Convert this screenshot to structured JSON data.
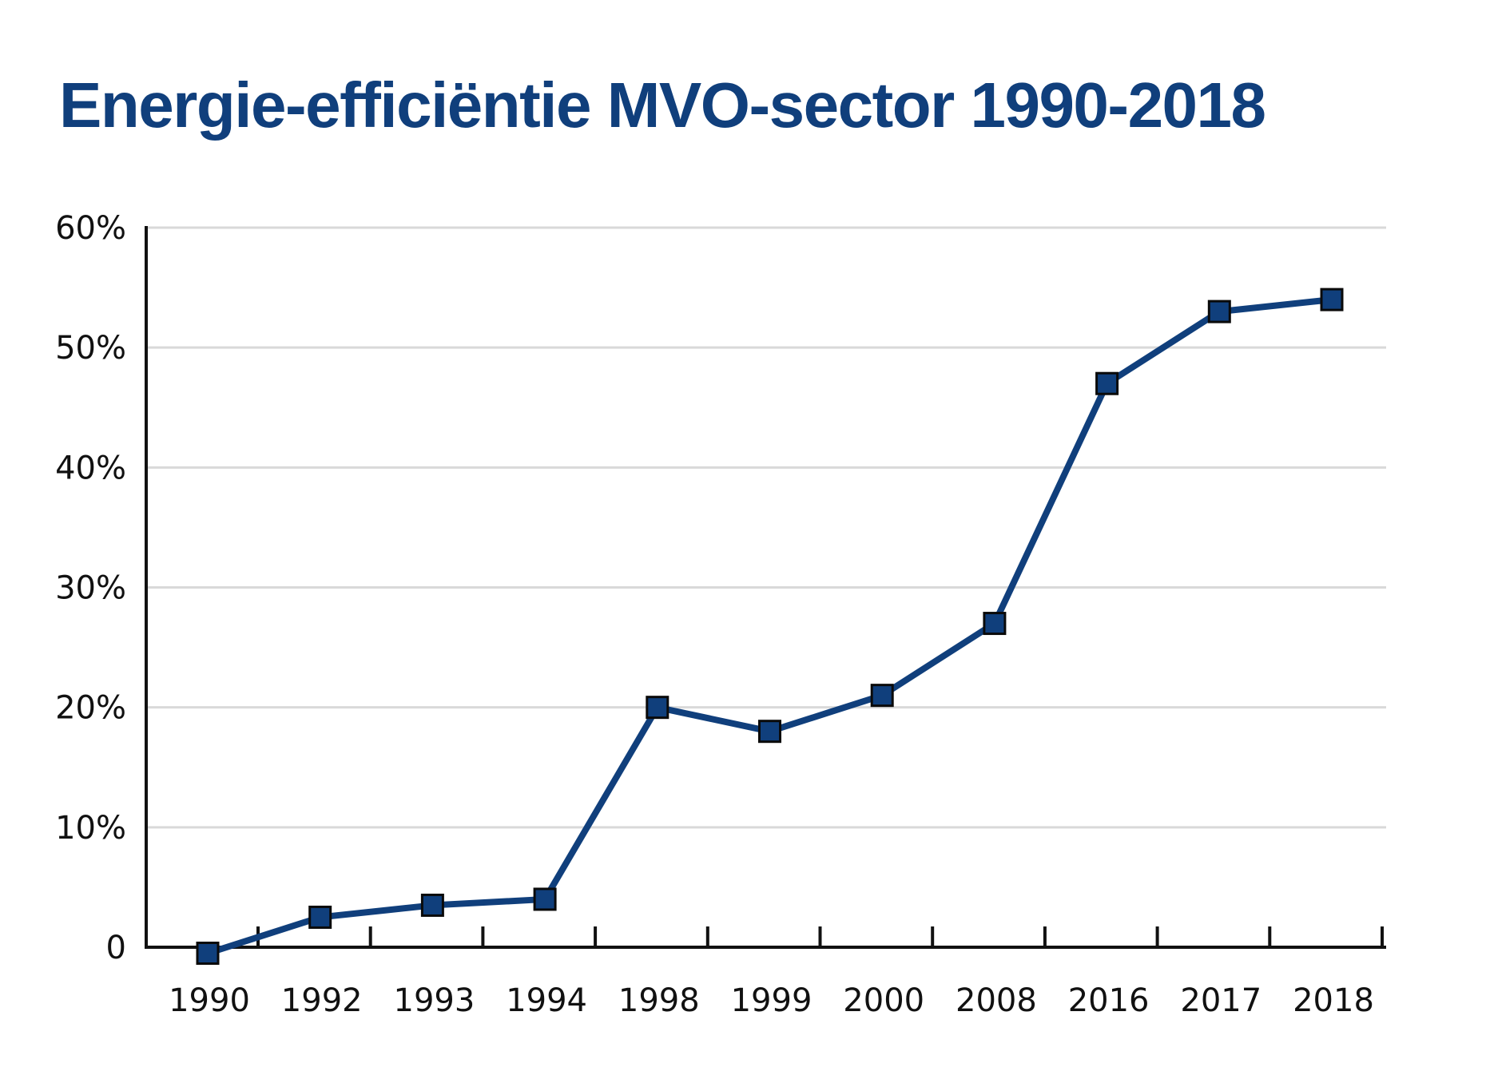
{
  "chart_data": {
    "type": "line",
    "title": "Energie-efficiëntie MVO-sector 1990-2018",
    "xlabel": "",
    "ylabel": "",
    "categories": [
      "1990",
      "1992",
      "1993",
      "1994",
      "1998",
      "1999",
      "2000",
      "2008",
      "2016",
      "2017",
      "2018"
    ],
    "series": [
      {
        "values": [
          -0.5,
          2.5,
          3.5,
          4,
          20,
          18,
          21,
          27,
          47,
          53,
          54
        ]
      }
    ],
    "ylim": [
      0,
      60
    ],
    "yticks": [
      0,
      10,
      20,
      30,
      40,
      50,
      60
    ],
    "ytick_labels": [
      "0",
      "10%",
      "20%",
      "30%",
      "40%",
      "50%",
      "60%"
    ],
    "grid": true,
    "legend": "none",
    "colors": {
      "title": "#103f7c",
      "line": "#103f7c",
      "marker_fill": "#103f7c",
      "marker_stroke": "#0a0a0a",
      "grid": "#d9d9d9",
      "axis": "#111111"
    }
  }
}
